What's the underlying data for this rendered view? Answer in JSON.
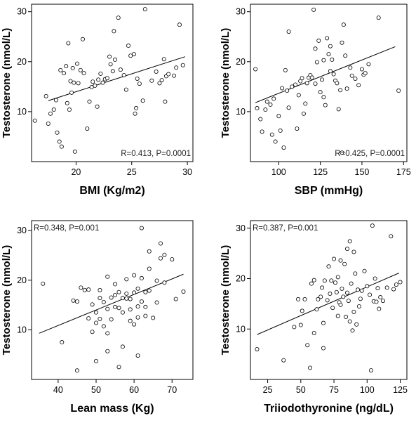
{
  "chart_data": [
    {
      "type": "scatter",
      "xlabel": "BMI (Kg/m2)",
      "ylabel": "Testosterone (nmol/L)",
      "xlim": [
        16,
        30.5
      ],
      "ylim": [
        0,
        31.5
      ],
      "xticks": [
        20,
        25,
        30
      ],
      "yticks": [
        10,
        20,
        30
      ],
      "annotation": "R=0.413, P=0.0001",
      "annotation_pos": "bottom-right",
      "trend": {
        "x": [
          17.5,
          29.8
        ],
        "y": [
          12.2,
          21.0
        ]
      },
      "points": [
        [
          16.3,
          8.2
        ],
        [
          17.3,
          13.1
        ],
        [
          17.5,
          7.6
        ],
        [
          17.7,
          9.6
        ],
        [
          18.0,
          10.4
        ],
        [
          18.2,
          12.3
        ],
        [
          18.3,
          5.8
        ],
        [
          18.5,
          4.0
        ],
        [
          18.6,
          18.3
        ],
        [
          18.7,
          3.0
        ],
        [
          18.9,
          17.7
        ],
        [
          19.1,
          19.1
        ],
        [
          19.2,
          11.7
        ],
        [
          19.3,
          23.7
        ],
        [
          19.4,
          10.4
        ],
        [
          19.5,
          16.1
        ],
        [
          19.6,
          13.8
        ],
        [
          19.7,
          18.7
        ],
        [
          19.8,
          15.8
        ],
        [
          19.9,
          2.0
        ],
        [
          20.1,
          19.6
        ],
        [
          20.2,
          15.7
        ],
        [
          20.4,
          18.3
        ],
        [
          20.6,
          24.5
        ],
        [
          20.7,
          17.7
        ],
        [
          21.0,
          6.6
        ],
        [
          21.2,
          12.0
        ],
        [
          21.4,
          14.9
        ],
        [
          21.5,
          16.0
        ],
        [
          21.7,
          15.2
        ],
        [
          21.9,
          11.0
        ],
        [
          22.0,
          16.4
        ],
        [
          22.2,
          17.6
        ],
        [
          22.4,
          15.8
        ],
        [
          22.6,
          16.5
        ],
        [
          22.8,
          16.7
        ],
        [
          23.0,
          21.0
        ],
        [
          23.1,
          19.5
        ],
        [
          23.3,
          18.1
        ],
        [
          23.4,
          26.1
        ],
        [
          23.5,
          20.4
        ],
        [
          23.8,
          28.8
        ],
        [
          24.0,
          18.4
        ],
        [
          24.3,
          17.3
        ],
        [
          24.5,
          14.4
        ],
        [
          24.7,
          23.2
        ],
        [
          24.9,
          21.2
        ],
        [
          25.2,
          21.5
        ],
        [
          25.3,
          9.6
        ],
        [
          25.4,
          10.7
        ],
        [
          25.5,
          16.6
        ],
        [
          25.7,
          15.6
        ],
        [
          26.0,
          12.2
        ],
        [
          26.2,
          30.5
        ],
        [
          26.8,
          16.2
        ],
        [
          27.2,
          18.0
        ],
        [
          27.5,
          15.7
        ],
        [
          27.7,
          16.3
        ],
        [
          27.9,
          20.5
        ],
        [
          28.0,
          12.0
        ],
        [
          28.1,
          17.1
        ],
        [
          28.3,
          17.5
        ],
        [
          28.8,
          17.2
        ],
        [
          29.0,
          18.8
        ],
        [
          29.3,
          27.4
        ],
        [
          29.6,
          19.3
        ]
      ]
    },
    {
      "type": "scatter",
      "xlabel": "SBP (mmHg)",
      "ylabel": "Testosterone (nmol/L)",
      "xlim": [
        83,
        177
      ],
      "ylim": [
        0,
        31.5
      ],
      "xticks": [
        100,
        125,
        150,
        175
      ],
      "yticks": [
        10,
        20,
        30
      ],
      "annotation": "R=0.425, P=0.0001",
      "annotation_pos": "bottom-right",
      "trend": {
        "x": [
          86,
          170
        ],
        "y": [
          11.8,
          23.0
        ]
      },
      "points": [
        [
          86,
          18.5
        ],
        [
          87,
          10.7
        ],
        [
          89,
          8.5
        ],
        [
          90,
          6.0
        ],
        [
          92,
          10.4
        ],
        [
          93,
          12.0
        ],
        [
          95,
          11.4
        ],
        [
          96,
          5.4
        ],
        [
          97,
          12.6
        ],
        [
          98,
          4.0
        ],
        [
          100,
          9.1
        ],
        [
          101,
          6.2
        ],
        [
          102,
          14.7
        ],
        [
          103,
          2.8
        ],
        [
          104,
          18.3
        ],
        [
          105,
          14.2
        ],
        [
          106,
          26.0
        ],
        [
          106,
          10.8
        ],
        [
          108,
          15.0
        ],
        [
          110,
          15.4
        ],
        [
          111,
          6.6
        ],
        [
          112,
          13.3
        ],
        [
          113,
          16.1
        ],
        [
          114,
          16.7
        ],
        [
          115,
          9.6
        ],
        [
          116,
          11.6
        ],
        [
          117,
          15.7
        ],
        [
          118,
          16.8
        ],
        [
          119,
          17.3
        ],
        [
          120,
          16.8
        ],
        [
          121,
          30.4
        ],
        [
          122,
          22.6
        ],
        [
          122,
          15.6
        ],
        [
          123,
          19.9
        ],
        [
          124,
          24.2
        ],
        [
          125,
          13.9
        ],
        [
          126,
          16.4
        ],
        [
          127,
          12.9
        ],
        [
          127,
          20.3
        ],
        [
          128,
          11.3
        ],
        [
          129,
          24.7
        ],
        [
          130,
          21.5
        ],
        [
          131,
          23.1
        ],
        [
          131,
          18.1
        ],
        [
          132,
          20.4
        ],
        [
          133,
          17.5
        ],
        [
          134,
          16.2
        ],
        [
          135,
          15.7
        ],
        [
          136,
          10.5
        ],
        [
          137,
          14.3
        ],
        [
          138,
          23.8
        ],
        [
          138,
          1.8
        ],
        [
          139,
          27.4
        ],
        [
          140,
          21.2
        ],
        [
          141,
          14.6
        ],
        [
          143,
          18.8
        ],
        [
          144,
          17.2
        ],
        [
          146,
          16.6
        ],
        [
          148,
          15.3
        ],
        [
          150,
          18.5
        ],
        [
          151,
          17.4
        ],
        [
          152,
          17.7
        ],
        [
          154,
          19.5
        ],
        [
          160,
          28.8
        ],
        [
          172,
          14.2
        ]
      ]
    },
    {
      "type": "scatter",
      "xlabel": "Lean mass (Kg)",
      "ylabel": "Testosterone (nmol/L)",
      "xlim": [
        33,
        75.5
      ],
      "ylim": [
        0,
        32
      ],
      "xticks": [
        40,
        50,
        60,
        70
      ],
      "yticks": [
        10,
        20,
        30
      ],
      "annotation": "R=0.348, P=0.001",
      "annotation_pos": "top-left",
      "trend": {
        "x": [
          35,
          73
        ],
        "y": [
          9.3,
          21.2
        ]
      },
      "points": [
        [
          36,
          19.3
        ],
        [
          41,
          7.5
        ],
        [
          44,
          15.9
        ],
        [
          45,
          1.8
        ],
        [
          45,
          15.7
        ],
        [
          46,
          18.5
        ],
        [
          47,
          18.0
        ],
        [
          48,
          18.1
        ],
        [
          48,
          12.3
        ],
        [
          49,
          15.1
        ],
        [
          49,
          9.6
        ],
        [
          50,
          11.4
        ],
        [
          50,
          3.7
        ],
        [
          50,
          13.5
        ],
        [
          51,
          12.2
        ],
        [
          51,
          16.4
        ],
        [
          51,
          18.0
        ],
        [
          52,
          15.6
        ],
        [
          52,
          10.7
        ],
        [
          53,
          14.2
        ],
        [
          53,
          20.7
        ],
        [
          53,
          9.3
        ],
        [
          53,
          5.7
        ],
        [
          54,
          16.5
        ],
        [
          54,
          12.1
        ],
        [
          55,
          14.6
        ],
        [
          55,
          19.2
        ],
        [
          55,
          17.0
        ],
        [
          56,
          14.4
        ],
        [
          56,
          2.5
        ],
        [
          56,
          17.6
        ],
        [
          57,
          16.4
        ],
        [
          57,
          13.5
        ],
        [
          57,
          6.6
        ],
        [
          58,
          16.3
        ],
        [
          58,
          20.2
        ],
        [
          58,
          17.3
        ],
        [
          59,
          11.8
        ],
        [
          59,
          16.2
        ],
        [
          59,
          14.1
        ],
        [
          60,
          21.0
        ],
        [
          60,
          17.5
        ],
        [
          60,
          11.1
        ],
        [
          61,
          14.7
        ],
        [
          61,
          18.3
        ],
        [
          61,
          12.5
        ],
        [
          61,
          4.8
        ],
        [
          62,
          30.5
        ],
        [
          62,
          15.7
        ],
        [
          62,
          20.4
        ],
        [
          63,
          17.6
        ],
        [
          63,
          14.6
        ],
        [
          63,
          12.8
        ],
        [
          64,
          25.8
        ],
        [
          64,
          22.3
        ],
        [
          64,
          17.9
        ],
        [
          65,
          12.4
        ],
        [
          66,
          15.5
        ],
        [
          66,
          19.9
        ],
        [
          67,
          24.4
        ],
        [
          67,
          27.4
        ],
        [
          68,
          25.1
        ],
        [
          68,
          19.5
        ],
        [
          70,
          24.2
        ],
        [
          71,
          16.2
        ],
        [
          73,
          17.7
        ]
      ]
    },
    {
      "type": "scatter",
      "xlabel": "Triiodothyronine (ng/dL)",
      "ylabel": "Testosterone (nmol/L)",
      "xlim": [
        12,
        130
      ],
      "ylim": [
        0,
        31.5
      ],
      "xticks": [
        25,
        50,
        75,
        100,
        125
      ],
      "yticks": [
        10,
        20,
        30
      ],
      "annotation": "R=0.387, P=0.001",
      "annotation_pos": "top-left",
      "trend": {
        "x": [
          17,
          124
        ],
        "y": [
          8.9,
          21.1
        ]
      },
      "points": [
        [
          17,
          6.0
        ],
        [
          37,
          3.8
        ],
        [
          45,
          10.4
        ],
        [
          48,
          15.9
        ],
        [
          50,
          10.8
        ],
        [
          51,
          13.6
        ],
        [
          53,
          15.9
        ],
        [
          55,
          6.8
        ],
        [
          57,
          2.3
        ],
        [
          58,
          19.0
        ],
        [
          60,
          9.2
        ],
        [
          60,
          19.7
        ],
        [
          62,
          13.9
        ],
        [
          63,
          15.9
        ],
        [
          65,
          16.4
        ],
        [
          66,
          18.2
        ],
        [
          67,
          6.2
        ],
        [
          67,
          11.2
        ],
        [
          68,
          19.6
        ],
        [
          70,
          15.7
        ],
        [
          71,
          22.4
        ],
        [
          72,
          17.0
        ],
        [
          73,
          19.6
        ],
        [
          74,
          14.2
        ],
        [
          75,
          23.9
        ],
        [
          76,
          19.2
        ],
        [
          77,
          17.3
        ],
        [
          78,
          20.3
        ],
        [
          78,
          12.6
        ],
        [
          79,
          15.3
        ],
        [
          80,
          23.6
        ],
        [
          80,
          14.8
        ],
        [
          81,
          18.0
        ],
        [
          82,
          16.4
        ],
        [
          83,
          22.9
        ],
        [
          84,
          12.4
        ],
        [
          85,
          25.9
        ],
        [
          85,
          17.2
        ],
        [
          86,
          15.6
        ],
        [
          87,
          27.4
        ],
        [
          87,
          11.5
        ],
        [
          88,
          19.0
        ],
        [
          89,
          9.7
        ],
        [
          90,
          13.4
        ],
        [
          90,
          25.3
        ],
        [
          91,
          21.0
        ],
        [
          92,
          10.9
        ],
        [
          93,
          17.8
        ],
        [
          94,
          14.5
        ],
        [
          95,
          16.0
        ],
        [
          96,
          17.6
        ],
        [
          98,
          21.5
        ],
        [
          100,
          18.5
        ],
        [
          102,
          16.8
        ],
        [
          103,
          1.8
        ],
        [
          104,
          30.5
        ],
        [
          105,
          15.5
        ],
        [
          106,
          20.0
        ],
        [
          107,
          15.4
        ],
        [
          108,
          18.1
        ],
        [
          109,
          14.0
        ],
        [
          110,
          16.3
        ],
        [
          112,
          15.6
        ],
        [
          115,
          18.2
        ],
        [
          118,
          28.4
        ],
        [
          120,
          17.9
        ],
        [
          122,
          18.8
        ],
        [
          125,
          19.3
        ]
      ]
    }
  ]
}
